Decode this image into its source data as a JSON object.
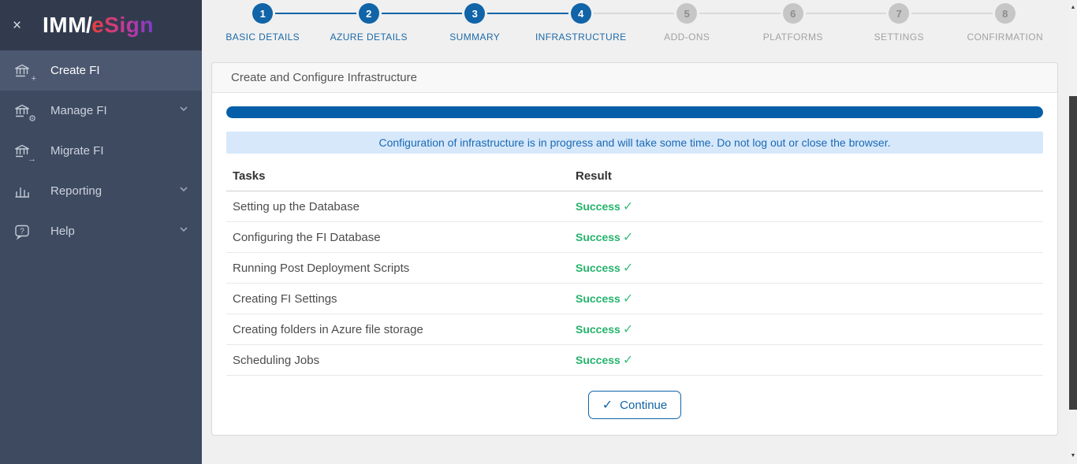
{
  "sidebar": {
    "logo": {
      "imm": "IMM",
      "slash": "/",
      "esign": "eSign"
    },
    "close_label": "×",
    "items": [
      {
        "label": "Create FI",
        "icon": "bank-plus-icon",
        "active": true,
        "chevron": false
      },
      {
        "label": "Manage FI",
        "icon": "bank-gear-icon",
        "active": false,
        "chevron": true
      },
      {
        "label": "Migrate FI",
        "icon": "bank-arrow-icon",
        "active": false,
        "chevron": false
      },
      {
        "label": "Reporting",
        "icon": "bar-chart-icon",
        "active": false,
        "chevron": true
      },
      {
        "label": "Help",
        "icon": "help-bubble-icon",
        "active": false,
        "chevron": true
      }
    ]
  },
  "stepper": {
    "steps": [
      {
        "number": "1",
        "label": "BASIC DETAILS",
        "state": "complete"
      },
      {
        "number": "2",
        "label": "AZURE DETAILS",
        "state": "complete"
      },
      {
        "number": "3",
        "label": "SUMMARY",
        "state": "complete"
      },
      {
        "number": "4",
        "label": "INFRASTRUCTURE",
        "state": "current"
      },
      {
        "number": "5",
        "label": "ADD-ONS",
        "state": "upcoming"
      },
      {
        "number": "6",
        "label": "PLATFORMS",
        "state": "upcoming"
      },
      {
        "number": "7",
        "label": "SETTINGS",
        "state": "upcoming"
      },
      {
        "number": "8",
        "label": "CONFIRMATION",
        "state": "upcoming"
      }
    ]
  },
  "panel": {
    "title": "Create and Configure Infrastructure",
    "progress_percent": 100,
    "banner": "Configuration of infrastructure is in progress and will take some time. Do not log out or close the browser.",
    "table": {
      "headers": {
        "tasks": "Tasks",
        "result": "Result"
      },
      "rows": [
        {
          "task": "Setting up the Database",
          "result": "Success",
          "check": "✓"
        },
        {
          "task": "Configuring the FI Database",
          "result": "Success",
          "check": "✓"
        },
        {
          "task": "Running Post Deployment Scripts",
          "result": "Success",
          "check": "✓"
        },
        {
          "task": "Creating FI Settings",
          "result": "Success",
          "check": "✓"
        },
        {
          "task": "Creating folders in Azure file storage",
          "result": "Success",
          "check": "✓"
        },
        {
          "task": "Scheduling Jobs",
          "result": "Success",
          "check": "✓"
        }
      ]
    },
    "continue_button": {
      "icon": "✓",
      "label": "Continue"
    }
  },
  "colors": {
    "accent_blue": "#1164a7",
    "progress_blue": "#045fa8",
    "banner_bg": "#d7e8fb",
    "banner_text": "#1a6ab3",
    "success_green": "#24b36b",
    "sidebar_bg": "#3d4a60",
    "sidebar_logo_band": "#323b4e",
    "sidebar_active": "#4c5870",
    "inactive_step_grey": "#c6c6c6"
  }
}
